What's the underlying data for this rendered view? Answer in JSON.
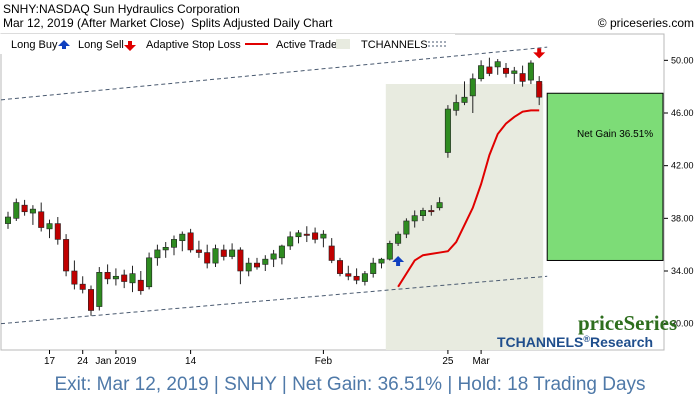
{
  "header": {
    "title": "SNHY:NASDAQ Sun Hydraulics Corporation",
    "date": "Mar 12, 2019 (After Market Close)",
    "chart_kind": "Splits Adjusted Daily Chart",
    "copyright": "© priceseries.com"
  },
  "legend": {
    "long_buy": "Long Buy",
    "long_sell": "Long Sell",
    "stop_loss": "Adaptive Stop Loss",
    "active_trade": "Active Trade",
    "tchannels": "TCHANNELS"
  },
  "colors": {
    "up": "#2e8b20",
    "down": "#c00000",
    "stop_line": "#e00000",
    "buy_arrow": "#1040c0",
    "sell_arrow": "#e00000",
    "active_shade": "#e8ebe0",
    "gain_box": "#7ddc77",
    "channel": "#4a5a70",
    "brand_green": "#2e6e1e",
    "brand_blue": "#1f4e8c",
    "footer_text": "#4f79a8"
  },
  "annotation": {
    "net_gain": "Net Gain 36.51%"
  },
  "branding": {
    "logo": "priceSeries",
    "tchannels_research": "TCHANNELS",
    "research": "Research"
  },
  "footer": {
    "text": "Exit: Mar 12, 2019 | SNHY | Net Gain: 36.51% | Hold: 18 Trading Days"
  },
  "chart_data": {
    "type": "candlestick",
    "ylim": [
      28,
      52
    ],
    "y_ticks": [
      "30.00",
      "34.00",
      "38.00",
      "42.00",
      "46.00",
      "50.00"
    ],
    "x_ticks": [
      {
        "index": 5,
        "label": "17"
      },
      {
        "index": 9,
        "label": "24"
      },
      {
        "index": 13,
        "label": "Jan 2019"
      },
      {
        "index": 22,
        "label": "14"
      },
      {
        "index": 38,
        "label": "Feb"
      },
      {
        "index": 53,
        "label": "25"
      },
      {
        "index": 57,
        "label": "Mar"
      }
    ],
    "candles": [
      [
        37.6,
        38.5,
        37.2,
        38.1
      ],
      [
        38.0,
        39.5,
        37.8,
        39.2
      ],
      [
        39.0,
        39.4,
        38.2,
        38.5
      ],
      [
        38.4,
        39.0,
        37.5,
        38.7
      ],
      [
        38.5,
        39.2,
        37.0,
        37.3
      ],
      [
        37.2,
        37.9,
        36.5,
        37.6
      ],
      [
        37.6,
        38.1,
        36.0,
        36.4
      ],
      [
        36.4,
        36.8,
        33.6,
        34.0
      ],
      [
        34.0,
        34.8,
        32.6,
        33.0
      ],
      [
        33.0,
        33.6,
        32.3,
        32.6
      ],
      [
        32.6,
        32.9,
        30.6,
        31.0
      ],
      [
        31.3,
        34.3,
        31.0,
        33.9
      ],
      [
        33.9,
        34.5,
        33.0,
        33.4
      ],
      [
        33.4,
        34.2,
        32.9,
        33.6
      ],
      [
        33.7,
        34.1,
        32.7,
        33.2
      ],
      [
        33.1,
        34.4,
        32.4,
        33.8
      ],
      [
        33.3,
        34.0,
        32.2,
        32.5
      ],
      [
        32.8,
        35.4,
        32.6,
        35.0
      ],
      [
        35.0,
        36.0,
        34.4,
        35.6
      ],
      [
        35.6,
        36.2,
        35.0,
        35.8
      ],
      [
        35.8,
        36.7,
        35.2,
        36.4
      ],
      [
        36.3,
        37.0,
        35.5,
        36.8
      ],
      [
        36.9,
        37.2,
        35.4,
        35.6
      ],
      [
        35.6,
        36.3,
        35.0,
        35.4
      ],
      [
        35.4,
        36.0,
        34.2,
        34.6
      ],
      [
        34.6,
        36.0,
        34.3,
        35.7
      ],
      [
        35.6,
        36.0,
        34.8,
        35.1
      ],
      [
        35.1,
        36.1,
        34.9,
        35.6
      ],
      [
        35.6,
        35.8,
        33.0,
        34.0
      ],
      [
        34.0,
        35.0,
        33.6,
        34.6
      ],
      [
        34.6,
        35.0,
        34.1,
        34.3
      ],
      [
        34.5,
        35.2,
        34.0,
        34.9
      ],
      [
        34.9,
        35.6,
        34.3,
        35.3
      ],
      [
        35.0,
        36.0,
        34.5,
        35.9
      ],
      [
        35.9,
        37.0,
        35.6,
        36.6
      ],
      [
        36.6,
        37.1,
        36.1,
        36.9
      ],
      [
        36.8,
        37.4,
        36.2,
        36.7
      ],
      [
        36.9,
        37.3,
        36.1,
        36.4
      ],
      [
        36.5,
        37.1,
        35.8,
        36.8
      ],
      [
        35.9,
        36.5,
        34.6,
        34.8
      ],
      [
        34.8,
        35.0,
        33.6,
        33.8
      ],
      [
        33.8,
        34.4,
        33.3,
        33.6
      ],
      [
        33.6,
        34.2,
        33.0,
        33.3
      ],
      [
        33.2,
        34.0,
        32.9,
        33.8
      ],
      [
        33.8,
        35.0,
        33.5,
        34.6
      ],
      [
        34.6,
        35.0,
        34.2,
        34.9
      ],
      [
        34.9,
        36.3,
        34.8,
        36.1
      ],
      [
        36.1,
        37.0,
        35.9,
        36.8
      ],
      [
        36.8,
        38.0,
        36.5,
        37.8
      ],
      [
        37.8,
        38.6,
        37.3,
        38.2
      ],
      [
        38.2,
        38.8,
        37.8,
        38.6
      ],
      [
        38.6,
        39.0,
        38.2,
        38.5
      ],
      [
        38.8,
        39.6,
        38.6,
        39.2
      ],
      [
        43.0,
        46.6,
        42.6,
        46.3
      ],
      [
        46.2,
        47.4,
        45.8,
        46.8
      ],
      [
        46.8,
        48.4,
        46.6,
        47.2
      ],
      [
        47.3,
        49.0,
        46.0,
        48.6
      ],
      [
        48.6,
        50.0,
        48.4,
        49.6
      ],
      [
        49.5,
        50.2,
        48.8,
        49.0
      ],
      [
        49.5,
        50.1,
        48.9,
        49.9
      ],
      [
        49.4,
        49.8,
        48.7,
        49.0
      ],
      [
        49.0,
        49.5,
        48.2,
        49.2
      ],
      [
        49.0,
        49.6,
        48.0,
        48.4
      ],
      [
        48.5,
        50.0,
        48.2,
        49.8
      ],
      [
        48.4,
        48.8,
        46.6,
        47.2
      ]
    ],
    "stop_loss": [
      [
        47,
        32.8
      ],
      [
        48,
        33.8
      ],
      [
        49,
        34.8
      ],
      [
        50,
        35.2
      ],
      [
        51,
        35.3
      ],
      [
        52,
        35.4
      ],
      [
        53,
        35.5
      ],
      [
        54,
        36.2
      ],
      [
        55,
        37.5
      ],
      [
        56,
        38.8
      ],
      [
        57,
        40.6
      ],
      [
        58,
        42.8
      ],
      [
        59,
        44.4
      ],
      [
        60,
        45.2
      ],
      [
        61,
        45.7
      ],
      [
        62,
        46.1
      ],
      [
        63,
        46.2
      ],
      [
        64,
        46.2
      ]
    ],
    "channel_upper": [
      [
        0,
        47.0
      ],
      [
        64,
        51.0
      ]
    ],
    "channel_lower": [
      [
        0,
        30.0
      ],
      [
        64,
        33.6
      ]
    ],
    "active_range": [
      46,
      64
    ],
    "buy_index": 47,
    "sell_index": 64,
    "gain_range": [
      34.8,
      47.5
    ]
  }
}
